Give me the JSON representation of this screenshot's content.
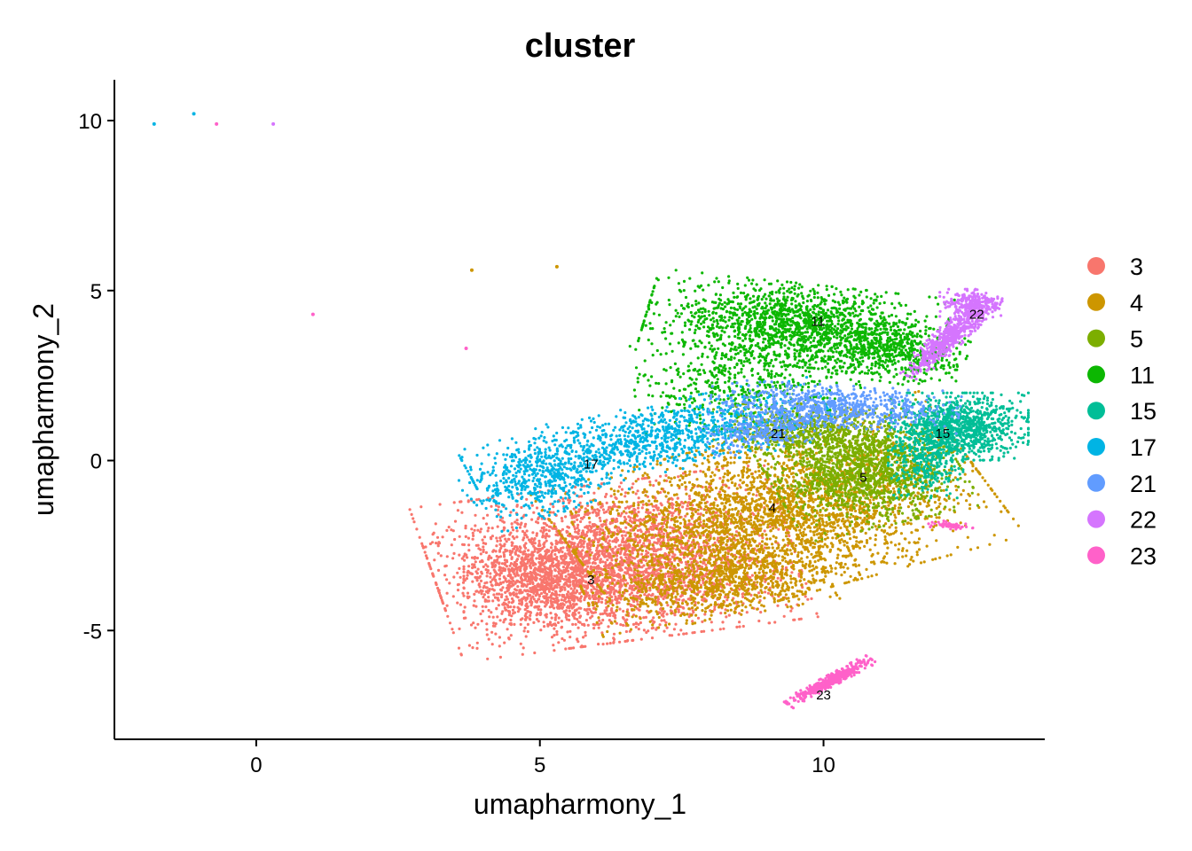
{
  "chart_data": {
    "type": "scatter",
    "title": "cluster",
    "xlabel": "umapharmony_1",
    "ylabel": "umapharmony_2",
    "xlim": [
      -2.5,
      13.9
    ],
    "ylim": [
      -8.2,
      11.2
    ],
    "xticks": [
      0,
      5,
      10
    ],
    "yticks": [
      -5,
      0,
      5,
      10
    ],
    "xtick_labels": [
      "0",
      "5",
      "10"
    ],
    "ytick_labels": [
      "-5",
      "0",
      "5",
      "10"
    ],
    "legend_position": "right",
    "grid": false,
    "series": [
      {
        "name": "3",
        "color": "#F8766D",
        "label_pos": [
          5.9,
          -3.5
        ]
      },
      {
        "name": "4",
        "color": "#CD9600",
        "label_pos": [
          9.1,
          -1.4
        ]
      },
      {
        "name": "5",
        "color": "#7CAE00",
        "label_pos": [
          10.7,
          -0.5
        ]
      },
      {
        "name": "11",
        "color": "#0CB702",
        "label_pos": [
          9.9,
          4.1
        ]
      },
      {
        "name": "15",
        "color": "#00BE97",
        "label_pos": [
          12.1,
          0.8
        ]
      },
      {
        "name": "17",
        "color": "#00B4E4",
        "label_pos": [
          5.9,
          -0.1
        ]
      },
      {
        "name": "21",
        "color": "#619CFF",
        "label_pos": [
          9.2,
          0.8
        ]
      },
      {
        "name": "22",
        "color": "#D575FE",
        "label_pos": [
          12.7,
          4.3
        ]
      },
      {
        "name": "23",
        "color": "#FF61C9",
        "label_pos": [
          10.0,
          -6.9
        ]
      }
    ],
    "outliers": [
      {
        "cluster": "17",
        "x": -1.8,
        "y": 9.9
      },
      {
        "cluster": "17",
        "x": -1.1,
        "y": 10.2
      },
      {
        "cluster": "23",
        "x": -0.7,
        "y": 9.9
      },
      {
        "cluster": "22",
        "x": 0.3,
        "y": 9.9
      },
      {
        "cluster": "23",
        "x": 1.0,
        "y": 4.3
      },
      {
        "cluster": "4",
        "x": 3.8,
        "y": 5.6
      },
      {
        "cluster": "4",
        "x": 5.3,
        "y": 5.7
      },
      {
        "cluster": "23",
        "x": 3.7,
        "y": 3.3
      }
    ]
  }
}
